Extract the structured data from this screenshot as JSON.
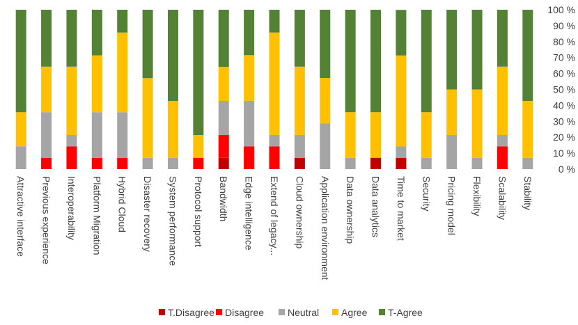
{
  "chart_data": {
    "type": "bar",
    "stacked": true,
    "percent": true,
    "title": "",
    "xlabel": "",
    "ylabel": "",
    "ylim": [
      0,
      100
    ],
    "ytick_step": 10,
    "ytick_suffix": " %",
    "grid": false,
    "legend_position": "bottom",
    "categories": [
      "Attractive interface",
      "Previous experience",
      "Interoperability",
      "Platform Migration",
      "Hybrid Cloud",
      "Disaster recovery",
      "System performance",
      "Protocol support",
      "Bandwidth",
      "Edge intelligence",
      "Extend of legacy...",
      "Cloud ownership",
      "Application environment",
      "Data ownership",
      "Data analytics",
      "Time to market",
      "Security",
      "Pricing model",
      "Flexibility",
      "Scalability",
      "Stability"
    ],
    "series": [
      {
        "name": "T.Disagree",
        "color": "#c00000",
        "values": [
          0,
          0,
          0,
          0,
          0,
          0,
          0,
          0,
          7.1,
          0,
          0,
          7.1,
          0,
          0,
          7.1,
          7.1,
          0,
          0,
          0,
          0,
          0
        ]
      },
      {
        "name": "Disagree",
        "color": "#ff0000",
        "values": [
          0,
          7.1,
          14.3,
          7.1,
          7.1,
          0,
          0,
          7.1,
          14.3,
          14.3,
          14.3,
          0,
          0,
          0,
          0,
          0,
          0,
          0,
          0,
          14.3,
          0
        ]
      },
      {
        "name": "Neutral",
        "color": "#a5a5a5",
        "values": [
          14.3,
          28.6,
          7.1,
          28.6,
          28.6,
          7.1,
          7.1,
          0,
          21.4,
          28.6,
          7.1,
          14.3,
          28.6,
          7.1,
          0,
          7.1,
          7.1,
          21.4,
          7.1,
          7.1,
          7.1
        ]
      },
      {
        "name": "Agree",
        "color": "#ffc000",
        "values": [
          21.4,
          28.6,
          42.9,
          35.7,
          50.0,
          50.0,
          35.7,
          14.3,
          21.4,
          28.6,
          64.3,
          42.9,
          28.6,
          28.6,
          28.6,
          57.1,
          28.6,
          28.6,
          42.9,
          42.9,
          35.7
        ]
      },
      {
        "name": "T-Agree",
        "color": "#548235",
        "values": [
          64.3,
          35.7,
          35.7,
          28.6,
          14.3,
          42.9,
          57.2,
          78.6,
          35.8,
          28.5,
          14.3,
          35.7,
          42.8,
          64.3,
          64.3,
          28.6,
          64.3,
          50.0,
          50.0,
          35.7,
          57.2
        ]
      }
    ]
  }
}
